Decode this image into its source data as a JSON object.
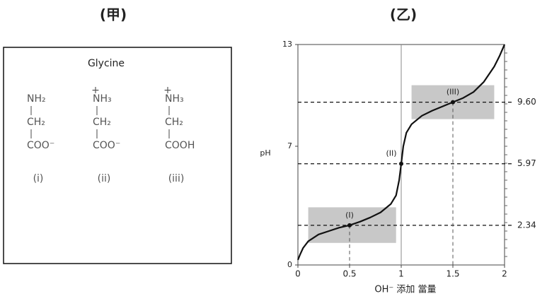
{
  "panel_a": {
    "title": "(甲)",
    "name": "Glycine",
    "structures": [
      {
        "charge": null,
        "lines": [
          "NH₂",
          "CH₂",
          "COO⁻"
        ],
        "label": "(i)"
      },
      {
        "charge": "+",
        "lines": [
          "NH₃",
          "CH₂",
          "COO⁻"
        ],
        "label": "(ii)"
      },
      {
        "charge": "+",
        "lines": [
          "NH₃",
          "CH₂",
          "COOH"
        ],
        "label": "(iii)"
      }
    ]
  },
  "chart_data": {
    "type": "line",
    "title": "(乙)",
    "x_label": "OH⁻ 添加 當量",
    "y_label": "pH",
    "x": [
      0,
      0.02,
      0.05,
      0.1,
      0.2,
      0.3,
      0.4,
      0.5,
      0.6,
      0.7,
      0.8,
      0.9,
      0.95,
      0.98,
      1.0,
      1.02,
      1.05,
      1.1,
      1.2,
      1.3,
      1.4,
      1.5,
      1.6,
      1.7,
      1.8,
      1.9,
      1.95,
      2.0
    ],
    "values": [
      0.3,
      0.6,
      1.0,
      1.4,
      1.8,
      2.0,
      2.2,
      2.34,
      2.55,
      2.8,
      3.1,
      3.6,
      4.1,
      5.0,
      5.97,
      7.0,
      7.8,
      8.3,
      8.8,
      9.1,
      9.35,
      9.6,
      9.85,
      10.2,
      10.8,
      11.7,
      12.3,
      13
    ],
    "color": "#111111",
    "xlim": [
      0,
      2
    ],
    "ylim": [
      0,
      13
    ],
    "xticks": [
      0,
      0.5,
      1,
      1.5,
      2
    ],
    "yticks": [
      0,
      7,
      13
    ],
    "regions": [
      {
        "x": [
          0.1,
          0.95
        ],
        "y": [
          1.3,
          3.4
        ]
      },
      {
        "x": [
          1.1,
          1.9
        ],
        "y": [
          8.6,
          10.6
        ]
      }
    ],
    "reference_lines": [
      {
        "value": 9.6,
        "label": "9.60"
      },
      {
        "value": 5.97,
        "label": "5.97"
      },
      {
        "value": 2.34,
        "label": "2.34"
      }
    ],
    "points": [
      {
        "label": "(I)",
        "x": 0.5,
        "y": 2.34
      },
      {
        "label": "(II)",
        "x": 1,
        "y": 5.97
      },
      {
        "label": "(III)",
        "x": 1.5,
        "y": 9.6
      }
    ]
  }
}
